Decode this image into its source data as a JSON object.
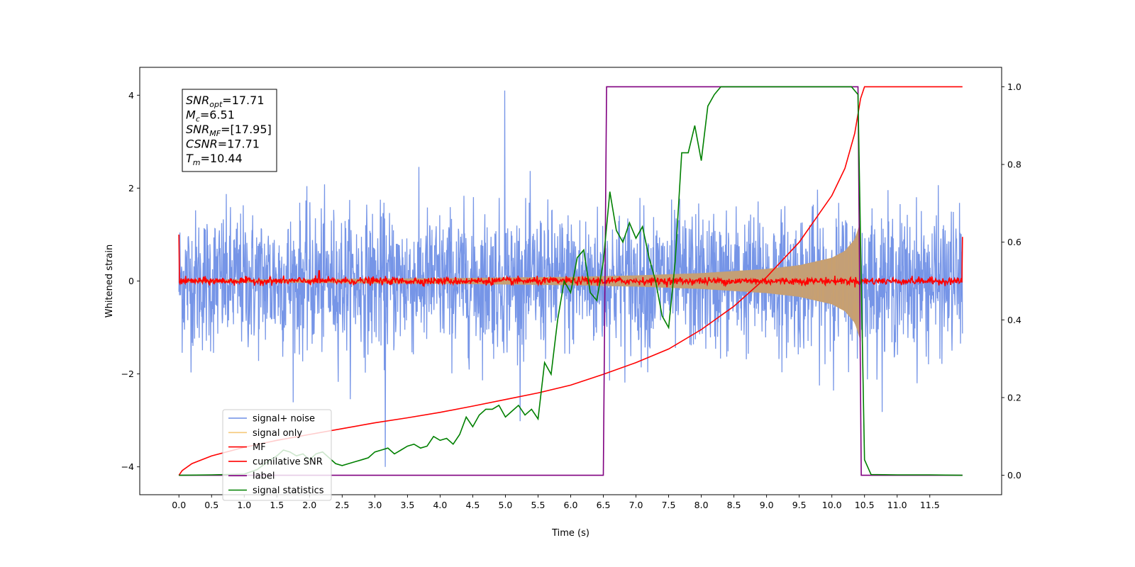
{
  "chart_data": {
    "type": "line",
    "xlabel": "Time (s)",
    "ylabel": "Whitened strain",
    "xlim": [
      -0.6,
      12.6
    ],
    "ylim_left": [
      -4.6,
      4.6
    ],
    "ylim_right": [
      -0.05,
      1.05
    ],
    "x_ticks": [
      0.0,
      0.5,
      1.0,
      1.5,
      2.0,
      2.5,
      3.0,
      3.5,
      4.0,
      4.5,
      5.0,
      5.5,
      6.0,
      6.5,
      7.0,
      7.5,
      8.0,
      8.5,
      9.0,
      9.5,
      10.0,
      10.5,
      11.0,
      11.5
    ],
    "x_tick_labels": [
      "0.0",
      "0.5",
      "1.0",
      "1.5",
      "2.0",
      "2.5",
      "3.0",
      "3.5",
      "4.0",
      "4.5",
      "5.0",
      "5.5",
      "6.0",
      "6.5",
      "7.0",
      "7.5",
      "8.0",
      "8.5",
      "9.0",
      "9.5",
      "10.0",
      "10.5",
      "11.0",
      "11.5"
    ],
    "y_left_ticks": [
      -4,
      -2,
      0,
      2,
      4
    ],
    "y_left_tick_labels": [
      "−4",
      "−2",
      "0",
      "2",
      "4"
    ],
    "y_right_ticks": [
      0.0,
      0.2,
      0.4,
      0.6,
      0.8,
      1.0
    ],
    "y_right_tick_labels": [
      "0.0",
      "0.2",
      "0.4",
      "0.6",
      "0.8",
      "1.0"
    ],
    "stats_box": [
      {
        "base": "SNR",
        "sub": "opt",
        "value": "=17.71"
      },
      {
        "base": "M",
        "sub": "c",
        "value": "=6.51"
      },
      {
        "base": "SNR",
        "sub": "MF",
        "value": "=[17.95]"
      },
      {
        "base": "CSNR",
        "sub": "",
        "value": "=17.71"
      },
      {
        "base": "T",
        "sub": "m",
        "value": "=10.44"
      }
    ],
    "legend_position": "lower-left",
    "grid": false,
    "series": [
      {
        "name": "signal+ noise",
        "color": "#6f8fe6",
        "axis": "left",
        "description_values": {
          "x_range": [
            0.0,
            12.0
          ],
          "noise_std": 0.75,
          "max_peak": 4.15,
          "max_peak_x": 4.99,
          "min_peak": -4.1,
          "min_peak_x": 3.16
        }
      },
      {
        "name": "signal only",
        "color": "#f5c97a",
        "axis": "left",
        "envelope": {
          "x": [
            0.0,
            2.0,
            4.0,
            6.0,
            7.0,
            8.0,
            9.0,
            9.5,
            10.0,
            10.2,
            10.35,
            10.42,
            10.44
          ],
          "amplitude": [
            0.03,
            0.04,
            0.06,
            0.09,
            0.12,
            0.17,
            0.26,
            0.34,
            0.5,
            0.65,
            0.9,
            1.2,
            1.3
          ]
        }
      },
      {
        "name": "MF",
        "color": "#ff0000",
        "axis": "left",
        "description_values": {
          "baseline": 0.0,
          "noise_std": 0.04,
          "start_value": 1.0,
          "end_value": 0.95
        }
      },
      {
        "name": "cumilative SNR",
        "color": "#ff0000",
        "axis": "right",
        "x": [
          0.0,
          0.05,
          0.2,
          0.5,
          1.0,
          1.5,
          2.0,
          2.5,
          3.0,
          3.5,
          4.0,
          4.5,
          5.0,
          5.5,
          6.0,
          6.5,
          7.0,
          7.5,
          8.0,
          8.5,
          9.0,
          9.5,
          10.0,
          10.2,
          10.35,
          10.44,
          10.5,
          11.0,
          12.0
        ],
        "y": [
          0.0,
          0.012,
          0.03,
          0.05,
          0.072,
          0.09,
          0.105,
          0.12,
          0.135,
          0.148,
          0.162,
          0.178,
          0.195,
          0.212,
          0.232,
          0.26,
          0.29,
          0.325,
          0.375,
          0.435,
          0.51,
          0.6,
          0.72,
          0.79,
          0.88,
          0.97,
          1.0,
          1.0,
          1.0
        ]
      },
      {
        "name": "label",
        "color": "#800080",
        "axis": "right",
        "x": [
          0.0,
          6.5,
          6.55,
          10.4,
          10.45,
          12.0
        ],
        "y": [
          0.0,
          0.0,
          1.0,
          1.0,
          0.0,
          0.0
        ]
      },
      {
        "name": "signal statistics",
        "color": "#008000",
        "axis": "right",
        "x": [
          0.0,
          0.5,
          1.0,
          1.2,
          1.4,
          1.5,
          1.6,
          1.7,
          1.8,
          1.9,
          2.0,
          2.1,
          2.2,
          2.3,
          2.4,
          2.5,
          2.6,
          2.7,
          2.8,
          2.9,
          3.0,
          3.1,
          3.2,
          3.3,
          3.4,
          3.5,
          3.6,
          3.7,
          3.8,
          3.9,
          4.0,
          4.1,
          4.2,
          4.3,
          4.4,
          4.5,
          4.6,
          4.7,
          4.8,
          4.9,
          5.0,
          5.1,
          5.2,
          5.3,
          5.4,
          5.5,
          5.6,
          5.7,
          5.8,
          5.9,
          6.0,
          6.1,
          6.2,
          6.3,
          6.4,
          6.5,
          6.6,
          6.7,
          6.8,
          6.9,
          7.0,
          7.1,
          7.2,
          7.3,
          7.4,
          7.5,
          7.6,
          7.7,
          7.8,
          7.9,
          8.0,
          8.1,
          8.2,
          8.3,
          8.4,
          8.5,
          9.0,
          9.5,
          10.0,
          10.3,
          10.4,
          10.45,
          10.5,
          10.6,
          11.0,
          11.5,
          12.0
        ],
        "y": [
          0.0,
          0.001,
          0.003,
          0.015,
          0.04,
          0.05,
          0.065,
          0.06,
          0.05,
          0.055,
          0.04,
          0.055,
          0.06,
          0.045,
          0.03,
          0.025,
          0.03,
          0.035,
          0.04,
          0.045,
          0.06,
          0.065,
          0.07,
          0.055,
          0.065,
          0.075,
          0.08,
          0.07,
          0.075,
          0.1,
          0.09,
          0.095,
          0.08,
          0.105,
          0.15,
          0.125,
          0.155,
          0.17,
          0.17,
          0.18,
          0.15,
          0.165,
          0.18,
          0.155,
          0.17,
          0.145,
          0.29,
          0.26,
          0.4,
          0.5,
          0.47,
          0.56,
          0.58,
          0.47,
          0.45,
          0.55,
          0.73,
          0.63,
          0.6,
          0.65,
          0.61,
          0.64,
          0.56,
          0.5,
          0.41,
          0.38,
          0.55,
          0.83,
          0.83,
          0.9,
          0.81,
          0.95,
          0.98,
          1.0,
          1.0,
          1.0,
          1.0,
          1.0,
          1.0,
          1.0,
          0.98,
          0.5,
          0.04,
          0.002,
          0.001,
          0.001,
          0.0
        ]
      }
    ]
  }
}
